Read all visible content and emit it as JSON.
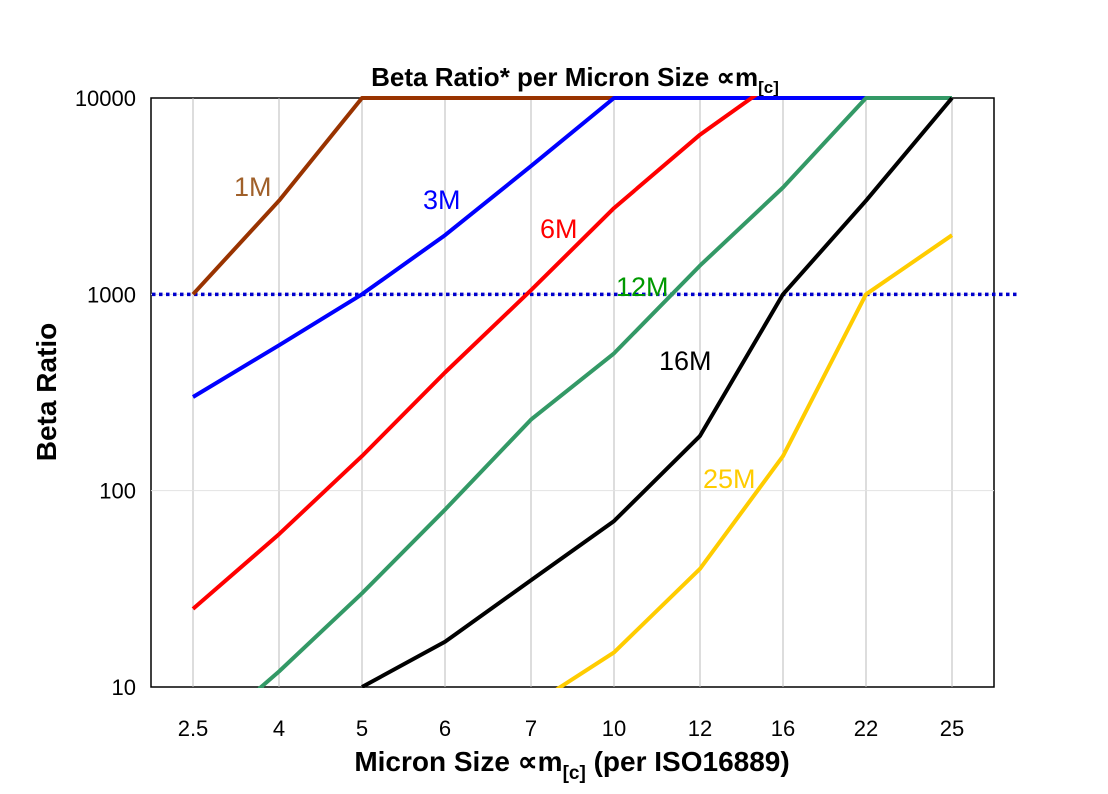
{
  "chart_data": {
    "type": "line",
    "title": "Beta Ratio* per Micron Size ∝m",
    "title_subscript": "[c]",
    "xlabel": "Micron Size ∝m",
    "xlabel_subscript": "[c]",
    "xlabel_suffix": " (per ISO16889)",
    "ylabel": "Beta Ratio",
    "categories": [
      "2.5",
      "4",
      "5",
      "6",
      "7",
      "10",
      "12",
      "16",
      "22",
      "25"
    ],
    "y_scale": "log",
    "ylim": [
      10,
      10000
    ],
    "y_ticks": [
      "10",
      "100",
      "1000",
      "10000"
    ],
    "grid": {
      "vertical": true,
      "horizontal": true
    },
    "reference_line": {
      "y": 1000,
      "color": "#0000cc",
      "style": "dotted"
    },
    "series": [
      {
        "name": "1M",
        "color": "#993300",
        "label_color": "#a0602a",
        "values": [
          1000,
          3000,
          10000,
          10000,
          10000,
          10000,
          10000,
          10000,
          10000,
          10000
        ]
      },
      {
        "name": "3M",
        "color": "#0000ff",
        "label_color": "#0000ff",
        "values": [
          300,
          550,
          1000,
          2000,
          4500,
          10000,
          10000,
          10000,
          10000,
          10000
        ]
      },
      {
        "name": "6M",
        "color": "#ff0000",
        "label_color": "#ff0000",
        "values": [
          25,
          60,
          150,
          400,
          1050,
          2750,
          6500,
          13000,
          null,
          null
        ]
      },
      {
        "name": "12M",
        "color": "#339966",
        "label_color": "#009900",
        "values": [
          5,
          12,
          30,
          80,
          230,
          500,
          1400,
          3500,
          10000,
          10000
        ]
      },
      {
        "name": "16M",
        "color": "#000000",
        "label_color": "#000000",
        "values": [
          null,
          null,
          10,
          17,
          35,
          70,
          190,
          1000,
          3000,
          10000
        ]
      },
      {
        "name": "25M",
        "color": "#ffcc00",
        "label_color": "#ffcc00",
        "values": [
          null,
          null,
          null,
          null,
          8,
          15,
          40,
          150,
          1000,
          2000
        ]
      }
    ]
  }
}
